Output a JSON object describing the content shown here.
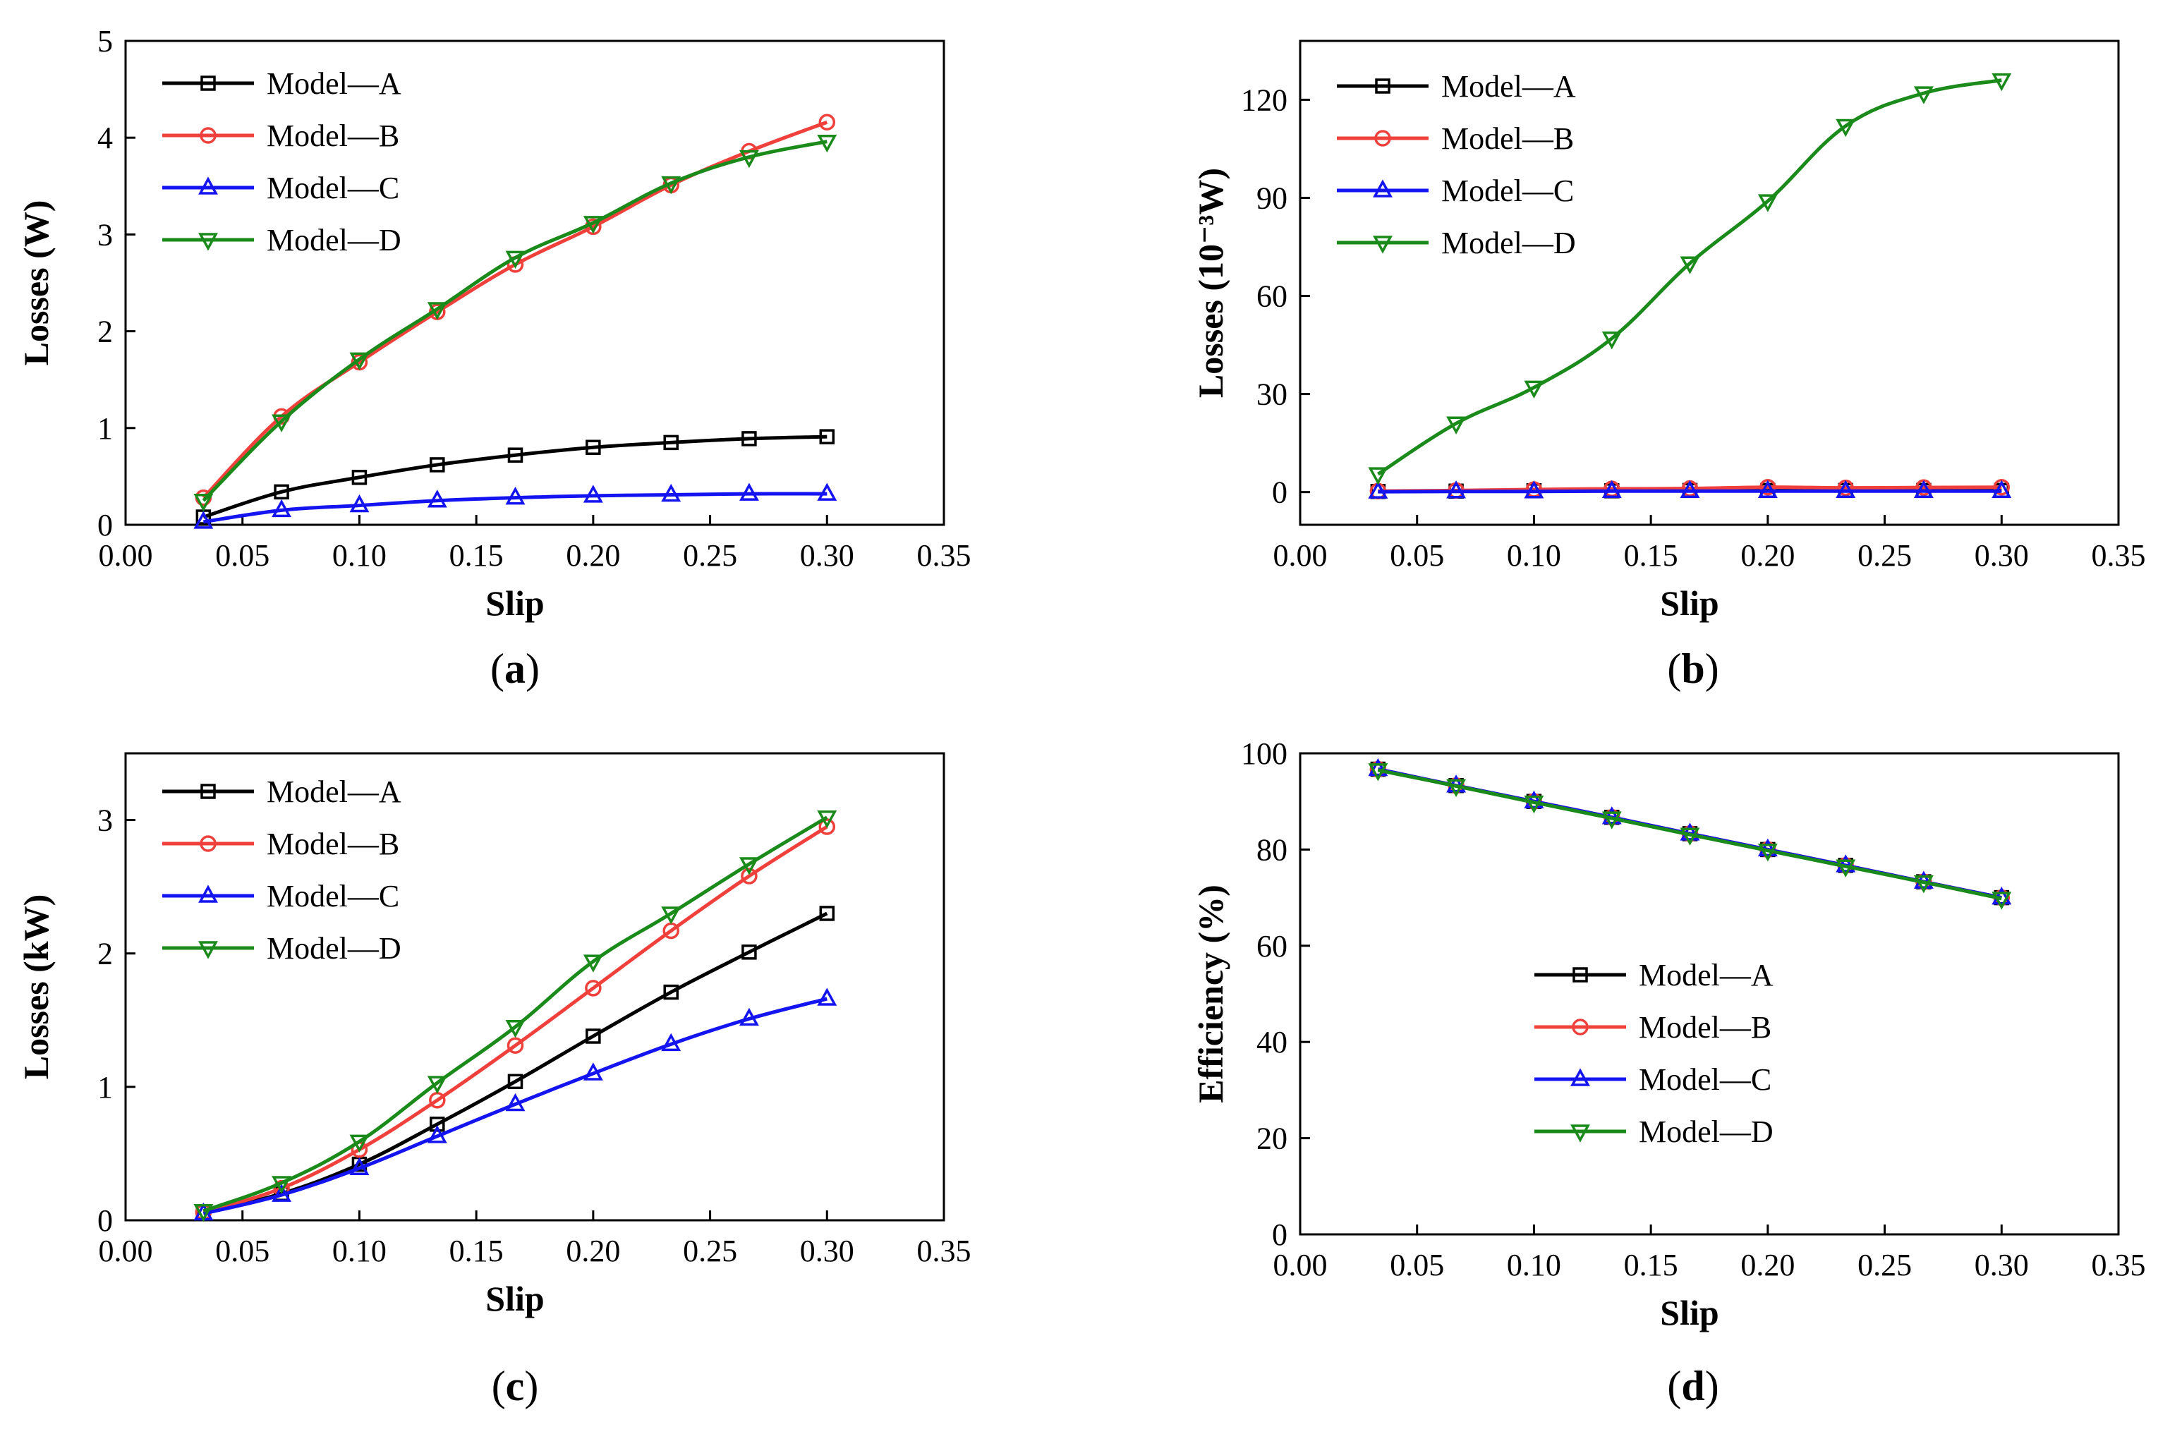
{
  "figure": {
    "colors": {
      "Model—A": "#000000",
      "Model—B": "#f0403c",
      "Model—C": "#1414f0",
      "Model—D": "#1a8a1a"
    },
    "markers": {
      "Model—A": "square",
      "Model—B": "circle",
      "Model—C": "triangle-up",
      "Model—D": "triangle-down"
    }
  },
  "chart_data": [
    {
      "id": "a",
      "type": "line",
      "caption_letter": "a",
      "xlabel": "Slip",
      "ylabel": "Losses (W)",
      "xlim": [
        0,
        0.35
      ],
      "ylim": [
        0,
        5
      ],
      "xticks": [
        0,
        0.05,
        0.1,
        0.15,
        0.2,
        0.25,
        0.3,
        0.35
      ],
      "xtick_labels": [
        "0.00",
        "0.05",
        "0.10",
        "0.15",
        "0.20",
        "0.25",
        "0.30",
        "0.35"
      ],
      "yticks": [
        0,
        1,
        2,
        3,
        4,
        5
      ],
      "ytick_labels": [
        "0",
        "1",
        "2",
        "3",
        "4",
        "5"
      ],
      "legend": "top-left",
      "x": [
        0.0333,
        0.0667,
        0.1,
        0.1333,
        0.1667,
        0.2,
        0.2333,
        0.2667,
        0.3
      ],
      "series": [
        {
          "name": "Model—A",
          "values": [
            0.08,
            0.34,
            0.49,
            0.62,
            0.72,
            0.8,
            0.85,
            0.89,
            0.91
          ]
        },
        {
          "name": "Model—B",
          "values": [
            0.28,
            1.12,
            1.68,
            2.2,
            2.69,
            3.08,
            3.51,
            3.86,
            4.16
          ]
        },
        {
          "name": "Model—C",
          "values": [
            0.03,
            0.15,
            0.2,
            0.25,
            0.28,
            0.3,
            0.31,
            0.32,
            0.32
          ]
        },
        {
          "name": "Model—D",
          "values": [
            0.25,
            1.07,
            1.71,
            2.23,
            2.76,
            3.12,
            3.53,
            3.8,
            3.96
          ]
        }
      ]
    },
    {
      "id": "b",
      "type": "line",
      "caption_letter": "b",
      "xlabel": "Slip",
      "ylabel": "Losses (10⁻³W)",
      "xlim": [
        0,
        0.35
      ],
      "ylim": [
        -10,
        138
      ],
      "xticks": [
        0,
        0.05,
        0.1,
        0.15,
        0.2,
        0.25,
        0.3,
        0.35
      ],
      "xtick_labels": [
        "0.00",
        "0.05",
        "0.10",
        "0.15",
        "0.20",
        "0.25",
        "0.30",
        "0.35"
      ],
      "yticks": [
        0,
        30,
        60,
        90,
        120
      ],
      "ytick_labels": [
        "0",
        "30",
        "60",
        "90",
        "120"
      ],
      "legend": "top-left",
      "x": [
        0.0333,
        0.0667,
        0.1,
        0.1333,
        0.1667,
        0.2,
        0.2333,
        0.2667,
        0.3
      ],
      "series": [
        {
          "name": "Model—A",
          "values": [
            0.2,
            0.3,
            0.4,
            0.4,
            0.5,
            0.5,
            0.5,
            0.5,
            0.5
          ]
        },
        {
          "name": "Model—B",
          "values": [
            0.3,
            0.5,
            0.8,
            1.0,
            1.1,
            1.5,
            1.3,
            1.4,
            1.5
          ]
        },
        {
          "name": "Model—C",
          "values": [
            0.1,
            0.2,
            0.2,
            0.3,
            0.3,
            0.3,
            0.3,
            0.3,
            0.3
          ]
        },
        {
          "name": "Model—D",
          "values": [
            5.5,
            21,
            32,
            47,
            70,
            89,
            112,
            122,
            126
          ]
        }
      ]
    },
    {
      "id": "c",
      "type": "line",
      "caption_letter": "c",
      "xlabel": "Slip",
      "ylabel": "Losses (kW)",
      "xlim": [
        0,
        0.35
      ],
      "ylim": [
        0,
        3.5
      ],
      "xticks": [
        0,
        0.05,
        0.1,
        0.15,
        0.2,
        0.25,
        0.3,
        0.35
      ],
      "xtick_labels": [
        "0.00",
        "0.05",
        "0.10",
        "0.15",
        "0.20",
        "0.25",
        "0.30",
        "0.35"
      ],
      "yticks": [
        0,
        1,
        2,
        3
      ],
      "ytick_labels": [
        "0",
        "1",
        "2",
        "3"
      ],
      "legend": "top-left",
      "x": [
        0.0333,
        0.0667,
        0.1,
        0.1333,
        0.1667,
        0.2,
        0.2333,
        0.2667,
        0.3
      ],
      "series": [
        {
          "name": "Model—A",
          "values": [
            0.06,
            0.2,
            0.42,
            0.72,
            1.04,
            1.38,
            1.71,
            2.01,
            2.3
          ]
        },
        {
          "name": "Model—B",
          "values": [
            0.06,
            0.24,
            0.53,
            0.9,
            1.31,
            1.74,
            2.17,
            2.58,
            2.95
          ]
        },
        {
          "name": "Model—C",
          "values": [
            0.05,
            0.19,
            0.39,
            0.63,
            0.87,
            1.1,
            1.32,
            1.51,
            1.66
          ]
        },
        {
          "name": "Model—D",
          "values": [
            0.07,
            0.28,
            0.59,
            1.03,
            1.45,
            1.94,
            2.3,
            2.67,
            3.02
          ]
        }
      ]
    },
    {
      "id": "d",
      "type": "line",
      "caption_letter": "d",
      "xlabel": "Slip",
      "ylabel": "Efficiency (%)",
      "xlim": [
        0,
        0.35
      ],
      "ylim": [
        0,
        100
      ],
      "xticks": [
        0,
        0.05,
        0.1,
        0.15,
        0.2,
        0.25,
        0.3,
        0.35
      ],
      "xtick_labels": [
        "0.00",
        "0.05",
        "0.10",
        "0.15",
        "0.20",
        "0.25",
        "0.30",
        "0.35"
      ],
      "yticks": [
        0,
        20,
        40,
        60,
        80,
        100
      ],
      "ytick_labels": [
        "0",
        "20",
        "40",
        "60",
        "80",
        "100"
      ],
      "legend": "center",
      "x": [
        0.0333,
        0.0667,
        0.1,
        0.1333,
        0.1667,
        0.2,
        0.2333,
        0.2667,
        0.3
      ],
      "series": [
        {
          "name": "Model—A",
          "values": [
            96.7,
            93.3,
            90.0,
            86.7,
            83.3,
            80.0,
            76.7,
            73.3,
            70.0
          ]
        },
        {
          "name": "Model—B",
          "values": [
            96.7,
            93.3,
            90.0,
            86.7,
            83.3,
            80.0,
            76.7,
            73.3,
            70.0
          ]
        },
        {
          "name": "Model—C",
          "values": [
            96.7,
            93.3,
            90.0,
            86.7,
            83.3,
            80.0,
            76.7,
            73.3,
            70.0
          ]
        },
        {
          "name": "Model—D",
          "values": [
            96.5,
            93.2,
            89.8,
            86.5,
            83.1,
            79.8,
            76.5,
            73.2,
            69.8
          ]
        }
      ]
    }
  ]
}
